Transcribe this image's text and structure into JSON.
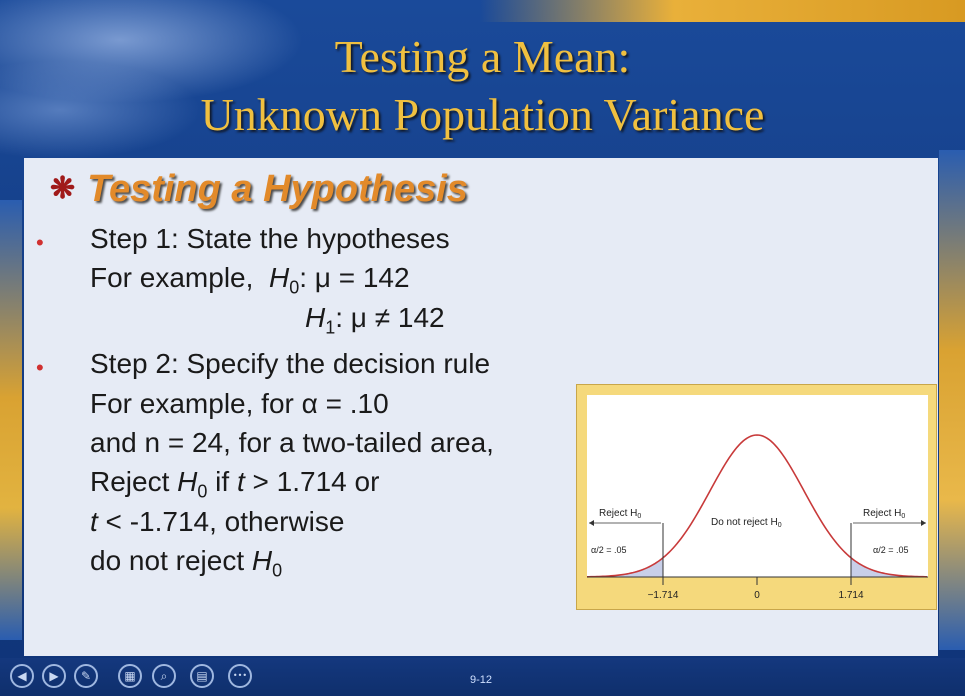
{
  "title": {
    "line1": "Testing a Mean:",
    "line2": "Unknown Population Variance"
  },
  "heading": {
    "star": "❋",
    "text": "Testing a Hypothesis"
  },
  "bullets": [
    "•",
    "•"
  ],
  "step1": {
    "title": "Step 1:  State the hypotheses",
    "example_prefix": "For example,",
    "h0_letter": "H",
    "h0_sub": "0",
    "h0_rest": ":  μ = 142",
    "h1_letter": "H",
    "h1_sub": "1",
    "h1_rest": ":  μ ≠ 142"
  },
  "step2": {
    "title": "Step 2:  Specify the decision rule",
    "line1": "For example, for α = .10",
    "line2": "and n = 24, for a two-tailed area,",
    "line3_a": "Reject ",
    "line3_h": "H",
    "line3_sub": "0",
    "line3_b": " if ",
    "line3_t": "t",
    "line3_c": " > 1.714 or",
    "line4_t": "t",
    "line4_b": " < -1.714, otherwise",
    "line5_a": "do not reject ",
    "line5_h": "H",
    "line5_sub": "0"
  },
  "figure": {
    "reject_left": "Reject H",
    "reject_right": "Reject H",
    "sub0": "0",
    "do_not_reject": "Do not reject H",
    "alpha_left": "α/2 = .05",
    "alpha_right": "α/2 = .05",
    "tick_left": "−1.714",
    "tick_mid": "0",
    "tick_right": "1.714",
    "colors": {
      "curve": "#c83a3a",
      "tail": "#c8cfe8"
    }
  },
  "footer": {
    "page_number": "9-12",
    "nav_icons": [
      "back-icon",
      "forward-icon",
      "pen-icon",
      "slides-icon",
      "zoom-icon",
      "menu-icon",
      "more-icon"
    ],
    "nav_glyphs": [
      "◀",
      "▶",
      "✎",
      "▦",
      "⌕",
      "▤",
      "•••"
    ]
  }
}
